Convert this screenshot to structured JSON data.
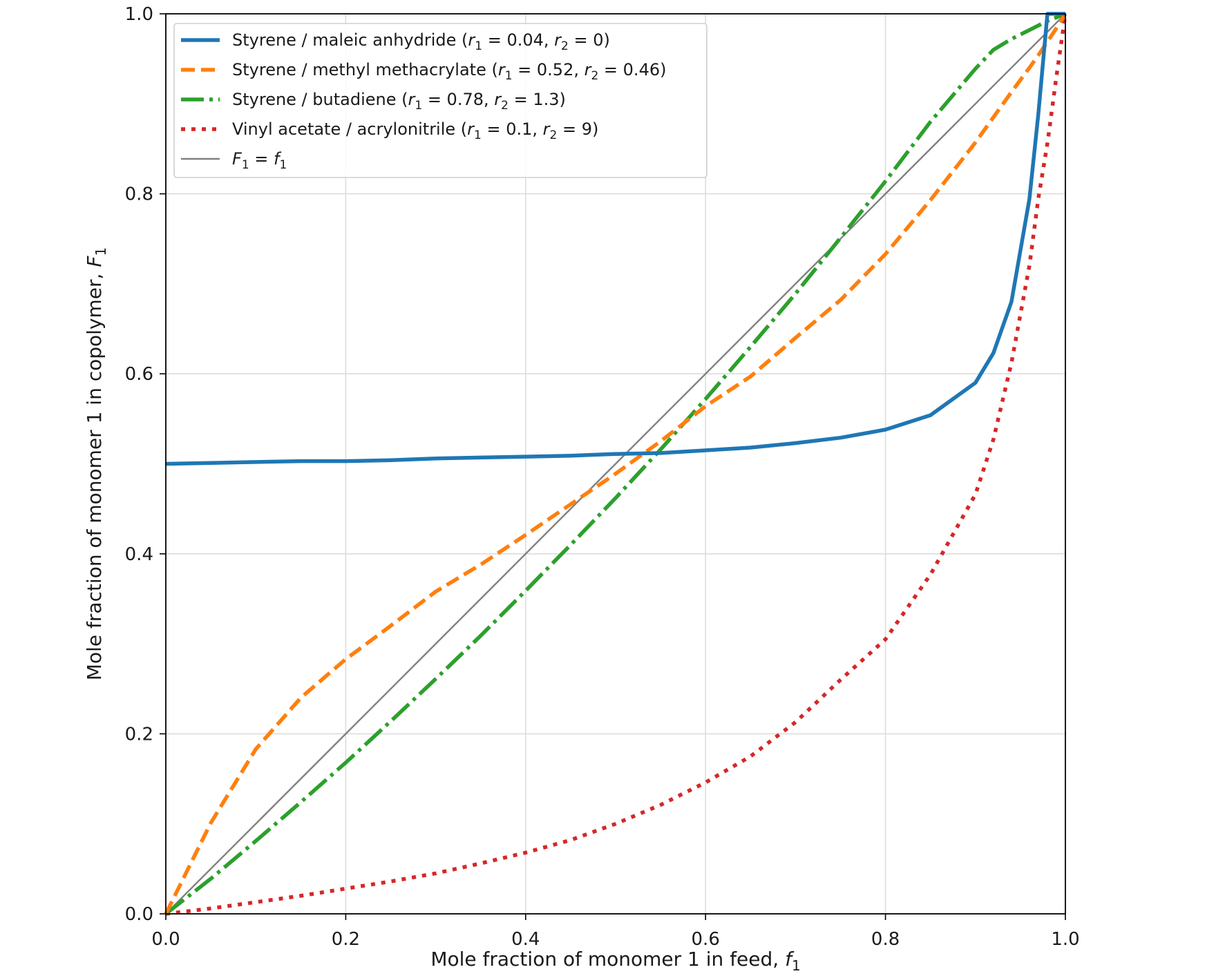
{
  "chart_data": {
    "type": "line",
    "title": "",
    "xlabel": "Mole fraction of monomer 1 in feed, ",
    "xlabel_symbol": {
      "base": "f",
      "sub": "1"
    },
    "ylabel": "Mole fraction of monomer 1 in copolymer, ",
    "ylabel_symbol": {
      "base": "F",
      "sub": "1"
    },
    "xlim": [
      0,
      1
    ],
    "ylim": [
      0,
      1
    ],
    "xticks": [
      0.0,
      0.2,
      0.4,
      0.6,
      0.8,
      1.0
    ],
    "yticks": [
      0.0,
      0.2,
      0.4,
      0.6,
      0.8,
      1.0
    ],
    "xtick_labels": [
      "0.0",
      "0.2",
      "0.4",
      "0.6",
      "0.8",
      "1.0"
    ],
    "ytick_labels": [
      "0.0",
      "0.2",
      "0.4",
      "0.6",
      "0.8",
      "1.0"
    ],
    "grid": true,
    "legend_position": "top-left",
    "x": [
      0.0,
      0.05,
      0.1,
      0.15,
      0.2,
      0.25,
      0.3,
      0.35,
      0.4,
      0.45,
      0.5,
      0.55,
      0.6,
      0.65,
      0.7,
      0.75,
      0.8,
      0.85,
      0.9,
      0.92,
      0.94,
      0.96,
      0.97,
      0.98,
      0.99,
      0.995,
      1.0
    ],
    "series": [
      {
        "name": "Styrene / maleic anhydride",
        "r1": "0.04",
        "r2": "0",
        "color": "#1f77b4",
        "style": "solid",
        "values": [
          0.5,
          0.501,
          0.502,
          0.503,
          0.503,
          0.504,
          0.506,
          0.507,
          0.508,
          0.509,
          0.511,
          0.512,
          0.515,
          0.518,
          0.523,
          0.529,
          0.538,
          0.554,
          0.59,
          0.623,
          0.68,
          0.794,
          0.889,
          1.0,
          1.0,
          1.0,
          1.0
        ]
      },
      {
        "name": "Styrene / methyl methacrylate",
        "r1": "0.52",
        "r2": "0.46",
        "color": "#ff7f0e",
        "style": "dashed",
        "values": [
          0.0,
          0.101,
          0.183,
          0.24,
          0.283,
          0.32,
          0.358,
          0.388,
          0.421,
          0.455,
          0.489,
          0.525,
          0.564,
          0.597,
          0.64,
          0.682,
          0.733,
          0.793,
          0.857,
          0.885,
          0.913,
          0.94,
          0.954,
          0.969,
          0.984,
          0.992,
          1.0
        ]
      },
      {
        "name": "Styrene / butadiene",
        "r1": "0.78",
        "r2": "1.3",
        "color": "#2ca02c",
        "style": "dashdot",
        "values": [
          0.0,
          0.039,
          0.081,
          0.124,
          0.168,
          0.214,
          0.261,
          0.309,
          0.359,
          0.41,
          0.462,
          0.516,
          0.572,
          0.63,
          0.689,
          0.751,
          0.814,
          0.88,
          0.939,
          0.96,
          0.972,
          0.982,
          0.987,
          0.992,
          0.996,
          0.998,
          1.0
        ]
      },
      {
        "name": "Vinyl acetate / acrylonitrile",
        "r1": "0.1",
        "r2": "9",
        "color": "#d62728",
        "style": "dotted",
        "values": [
          0.0,
          0.006,
          0.013,
          0.02,
          0.028,
          0.036,
          0.045,
          0.056,
          0.068,
          0.082,
          0.1,
          0.121,
          0.146,
          0.175,
          0.213,
          0.26,
          0.305,
          0.377,
          0.466,
          0.527,
          0.612,
          0.72,
          0.795,
          0.856,
          0.93,
          0.965,
          1.0
        ]
      },
      {
        "name": "F₁ = f₁",
        "legend_label": {
          "lhs_base": "F",
          "lhs_sub": "1",
          "op": " = ",
          "rhs_base": "f",
          "rhs_sub": "1"
        },
        "color": "#808080",
        "style": "solid-thin",
        "values": [
          0.0,
          0.05,
          0.1,
          0.15,
          0.2,
          0.25,
          0.3,
          0.35,
          0.4,
          0.45,
          0.5,
          0.55,
          0.6,
          0.65,
          0.7,
          0.75,
          0.8,
          0.85,
          0.9,
          0.92,
          0.94,
          0.96,
          0.97,
          0.98,
          0.99,
          0.995,
          1.0
        ]
      }
    ],
    "legend_params": {
      "r1_base": "r",
      "r1_sub": "1",
      "r2_base": "r",
      "r2_sub": "2"
    }
  }
}
